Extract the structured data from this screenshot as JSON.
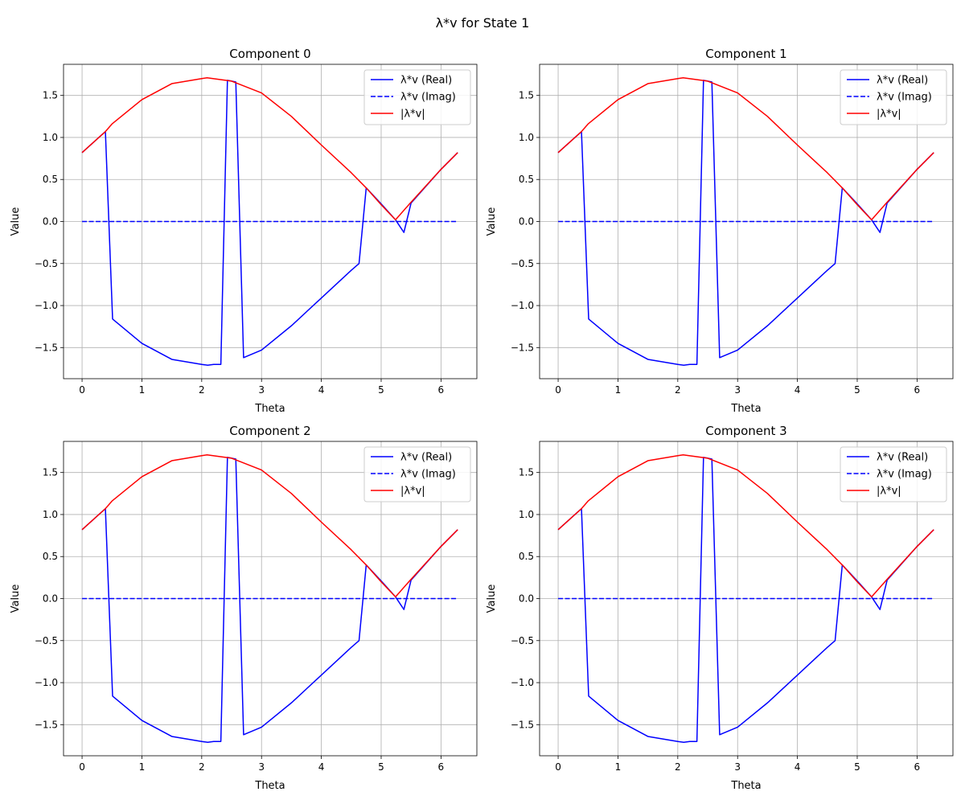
{
  "figure": {
    "title": "λ*v for State 1"
  },
  "chart_data": [
    {
      "type": "line",
      "title": "Component 0",
      "xlabel": "Theta",
      "ylabel": "Value",
      "xlim": [
        -0.31,
        6.6
      ],
      "ylim": [
        -1.87,
        1.87
      ],
      "xticks": [
        0,
        1,
        2,
        3,
        4,
        5,
        6
      ],
      "yticks": [
        -1.5,
        -1.0,
        -0.5,
        0.0,
        0.5,
        1.0,
        1.5
      ],
      "ytick_labels": [
        "−1.5",
        "−1.0",
        "−0.5",
        "0.0",
        "0.5",
        "1.0",
        "1.5"
      ],
      "grid": true,
      "legend_position": "top-right",
      "series": [
        {
          "name": "λ*v (Real)",
          "color": "#0000ff",
          "style": "solid",
          "x": [
            0,
            0.39,
            0.51,
            1.0,
            1.5,
            2.0,
            2.1,
            2.2,
            2.32,
            2.43,
            2.5,
            2.57,
            2.7,
            3.0,
            3.5,
            4.0,
            4.5,
            4.63,
            4.75,
            5.0,
            5.24,
            5.38,
            5.5,
            6.0,
            6.28
          ],
          "y": [
            0.82,
            1.07,
            -1.16,
            -1.45,
            -1.64,
            -1.7,
            -1.71,
            -1.7,
            -1.7,
            1.68,
            1.67,
            1.66,
            -1.62,
            -1.53,
            -1.24,
            -0.91,
            -0.58,
            -0.5,
            0.4,
            0.21,
            0.02,
            -0.13,
            0.22,
            0.62,
            0.82
          ]
        },
        {
          "name": "λ*v (Imag)",
          "color": "#0000ff",
          "style": "dashed",
          "x": [
            0,
            6.28
          ],
          "y": [
            0.0,
            0.0
          ]
        },
        {
          "name": "|λ*v|",
          "color": "#ff0000",
          "style": "solid",
          "x": [
            0,
            0.39,
            0.5,
            1.0,
            1.5,
            2.0,
            2.09,
            2.5,
            3.0,
            3.5,
            4.0,
            4.5,
            4.75,
            5.0,
            5.24,
            5.5,
            6.0,
            6.28
          ],
          "y": [
            0.82,
            1.07,
            1.16,
            1.45,
            1.64,
            1.7,
            1.71,
            1.67,
            1.53,
            1.25,
            0.91,
            0.58,
            0.4,
            0.2,
            0.02,
            0.23,
            0.62,
            0.82
          ]
        }
      ]
    },
    {
      "type": "line",
      "title": "Component 1",
      "xlabel": "Theta",
      "ylabel": "Value",
      "xlim": [
        -0.31,
        6.6
      ],
      "ylim": [
        -1.87,
        1.87
      ],
      "xticks": [
        0,
        1,
        2,
        3,
        4,
        5,
        6
      ],
      "yticks": [
        -1.5,
        -1.0,
        -0.5,
        0.0,
        0.5,
        1.0,
        1.5
      ],
      "ytick_labels": [
        "−1.5",
        "−1.0",
        "−0.5",
        "0.0",
        "0.5",
        "1.0",
        "1.5"
      ],
      "grid": true,
      "legend_position": "top-right",
      "series": [
        {
          "name": "λ*v (Real)",
          "color": "#0000ff",
          "style": "solid",
          "x": [
            0,
            0.39,
            0.51,
            1.0,
            1.5,
            2.0,
            2.1,
            2.2,
            2.32,
            2.43,
            2.5,
            2.57,
            2.7,
            3.0,
            3.5,
            4.0,
            4.5,
            4.63,
            4.75,
            5.0,
            5.24,
            5.38,
            5.5,
            6.0,
            6.28
          ],
          "y": [
            0.82,
            1.07,
            -1.16,
            -1.45,
            -1.64,
            -1.7,
            -1.71,
            -1.7,
            -1.7,
            1.68,
            1.67,
            1.66,
            -1.62,
            -1.53,
            -1.24,
            -0.91,
            -0.58,
            -0.5,
            0.4,
            0.21,
            0.02,
            -0.13,
            0.22,
            0.62,
            0.82
          ]
        },
        {
          "name": "λ*v (Imag)",
          "color": "#0000ff",
          "style": "dashed",
          "x": [
            0,
            6.28
          ],
          "y": [
            0.0,
            0.0
          ]
        },
        {
          "name": "|λ*v|",
          "color": "#ff0000",
          "style": "solid",
          "x": [
            0,
            0.39,
            0.5,
            1.0,
            1.5,
            2.0,
            2.09,
            2.5,
            3.0,
            3.5,
            4.0,
            4.5,
            4.75,
            5.0,
            5.24,
            5.5,
            6.0,
            6.28
          ],
          "y": [
            0.82,
            1.07,
            1.16,
            1.45,
            1.64,
            1.7,
            1.71,
            1.67,
            1.53,
            1.25,
            0.91,
            0.58,
            0.4,
            0.2,
            0.02,
            0.23,
            0.62,
            0.82
          ]
        }
      ]
    },
    {
      "type": "line",
      "title": "Component 2",
      "xlabel": "Theta",
      "ylabel": "Value",
      "xlim": [
        -0.31,
        6.6
      ],
      "ylim": [
        -1.87,
        1.87
      ],
      "xticks": [
        0,
        1,
        2,
        3,
        4,
        5,
        6
      ],
      "yticks": [
        -1.5,
        -1.0,
        -0.5,
        0.0,
        0.5,
        1.0,
        1.5
      ],
      "ytick_labels": [
        "−1.5",
        "−1.0",
        "−0.5",
        "0.0",
        "0.5",
        "1.0",
        "1.5"
      ],
      "grid": true,
      "legend_position": "top-right",
      "series": [
        {
          "name": "λ*v (Real)",
          "color": "#0000ff",
          "style": "solid",
          "x": [
            0,
            0.39,
            0.51,
            1.0,
            1.5,
            2.0,
            2.1,
            2.2,
            2.32,
            2.43,
            2.5,
            2.57,
            2.7,
            3.0,
            3.5,
            4.0,
            4.5,
            4.63,
            4.75,
            5.0,
            5.24,
            5.38,
            5.5,
            6.0,
            6.28
          ],
          "y": [
            0.82,
            1.07,
            -1.16,
            -1.45,
            -1.64,
            -1.7,
            -1.71,
            -1.7,
            -1.7,
            1.68,
            1.67,
            1.66,
            -1.62,
            -1.53,
            -1.24,
            -0.91,
            -0.58,
            -0.5,
            0.4,
            0.21,
            0.02,
            -0.13,
            0.22,
            0.62,
            0.82
          ]
        },
        {
          "name": "λ*v (Imag)",
          "color": "#0000ff",
          "style": "dashed",
          "x": [
            0,
            6.28
          ],
          "y": [
            0.0,
            0.0
          ]
        },
        {
          "name": "|λ*v|",
          "color": "#ff0000",
          "style": "solid",
          "x": [
            0,
            0.39,
            0.5,
            1.0,
            1.5,
            2.0,
            2.09,
            2.5,
            3.0,
            3.5,
            4.0,
            4.5,
            4.75,
            5.0,
            5.24,
            5.5,
            6.0,
            6.28
          ],
          "y": [
            0.82,
            1.07,
            1.16,
            1.45,
            1.64,
            1.7,
            1.71,
            1.67,
            1.53,
            1.25,
            0.91,
            0.58,
            0.4,
            0.2,
            0.02,
            0.23,
            0.62,
            0.82
          ]
        }
      ]
    },
    {
      "type": "line",
      "title": "Component 3",
      "xlabel": "Theta",
      "ylabel": "Value",
      "xlim": [
        -0.31,
        6.6
      ],
      "ylim": [
        -1.87,
        1.87
      ],
      "xticks": [
        0,
        1,
        2,
        3,
        4,
        5,
        6
      ],
      "yticks": [
        -1.5,
        -1.0,
        -0.5,
        0.0,
        0.5,
        1.0,
        1.5
      ],
      "ytick_labels": [
        "−1.5",
        "−1.0",
        "−0.5",
        "0.0",
        "0.5",
        "1.0",
        "1.5"
      ],
      "grid": true,
      "legend_position": "top-right",
      "series": [
        {
          "name": "λ*v (Real)",
          "color": "#0000ff",
          "style": "solid",
          "x": [
            0,
            0.39,
            0.51,
            1.0,
            1.5,
            2.0,
            2.1,
            2.2,
            2.32,
            2.43,
            2.5,
            2.57,
            2.7,
            3.0,
            3.5,
            4.0,
            4.5,
            4.63,
            4.75,
            5.0,
            5.24,
            5.38,
            5.5,
            6.0,
            6.28
          ],
          "y": [
            0.82,
            1.07,
            -1.16,
            -1.45,
            -1.64,
            -1.7,
            -1.71,
            -1.7,
            -1.7,
            1.68,
            1.67,
            1.66,
            -1.62,
            -1.53,
            -1.24,
            -0.91,
            -0.58,
            -0.5,
            0.4,
            0.21,
            0.02,
            -0.13,
            0.22,
            0.62,
            0.82
          ]
        },
        {
          "name": "λ*v (Imag)",
          "color": "#0000ff",
          "style": "dashed",
          "x": [
            0,
            6.28
          ],
          "y": [
            0.0,
            0.0
          ]
        },
        {
          "name": "|λ*v|",
          "color": "#ff0000",
          "style": "solid",
          "x": [
            0,
            0.39,
            0.5,
            1.0,
            1.5,
            2.0,
            2.09,
            2.5,
            3.0,
            3.5,
            4.0,
            4.5,
            4.75,
            5.0,
            5.24,
            5.5,
            6.0,
            6.28
          ],
          "y": [
            0.82,
            1.07,
            1.16,
            1.45,
            1.64,
            1.7,
            1.71,
            1.67,
            1.53,
            1.25,
            0.91,
            0.58,
            0.4,
            0.2,
            0.02,
            0.23,
            0.62,
            0.82
          ]
        }
      ]
    }
  ]
}
